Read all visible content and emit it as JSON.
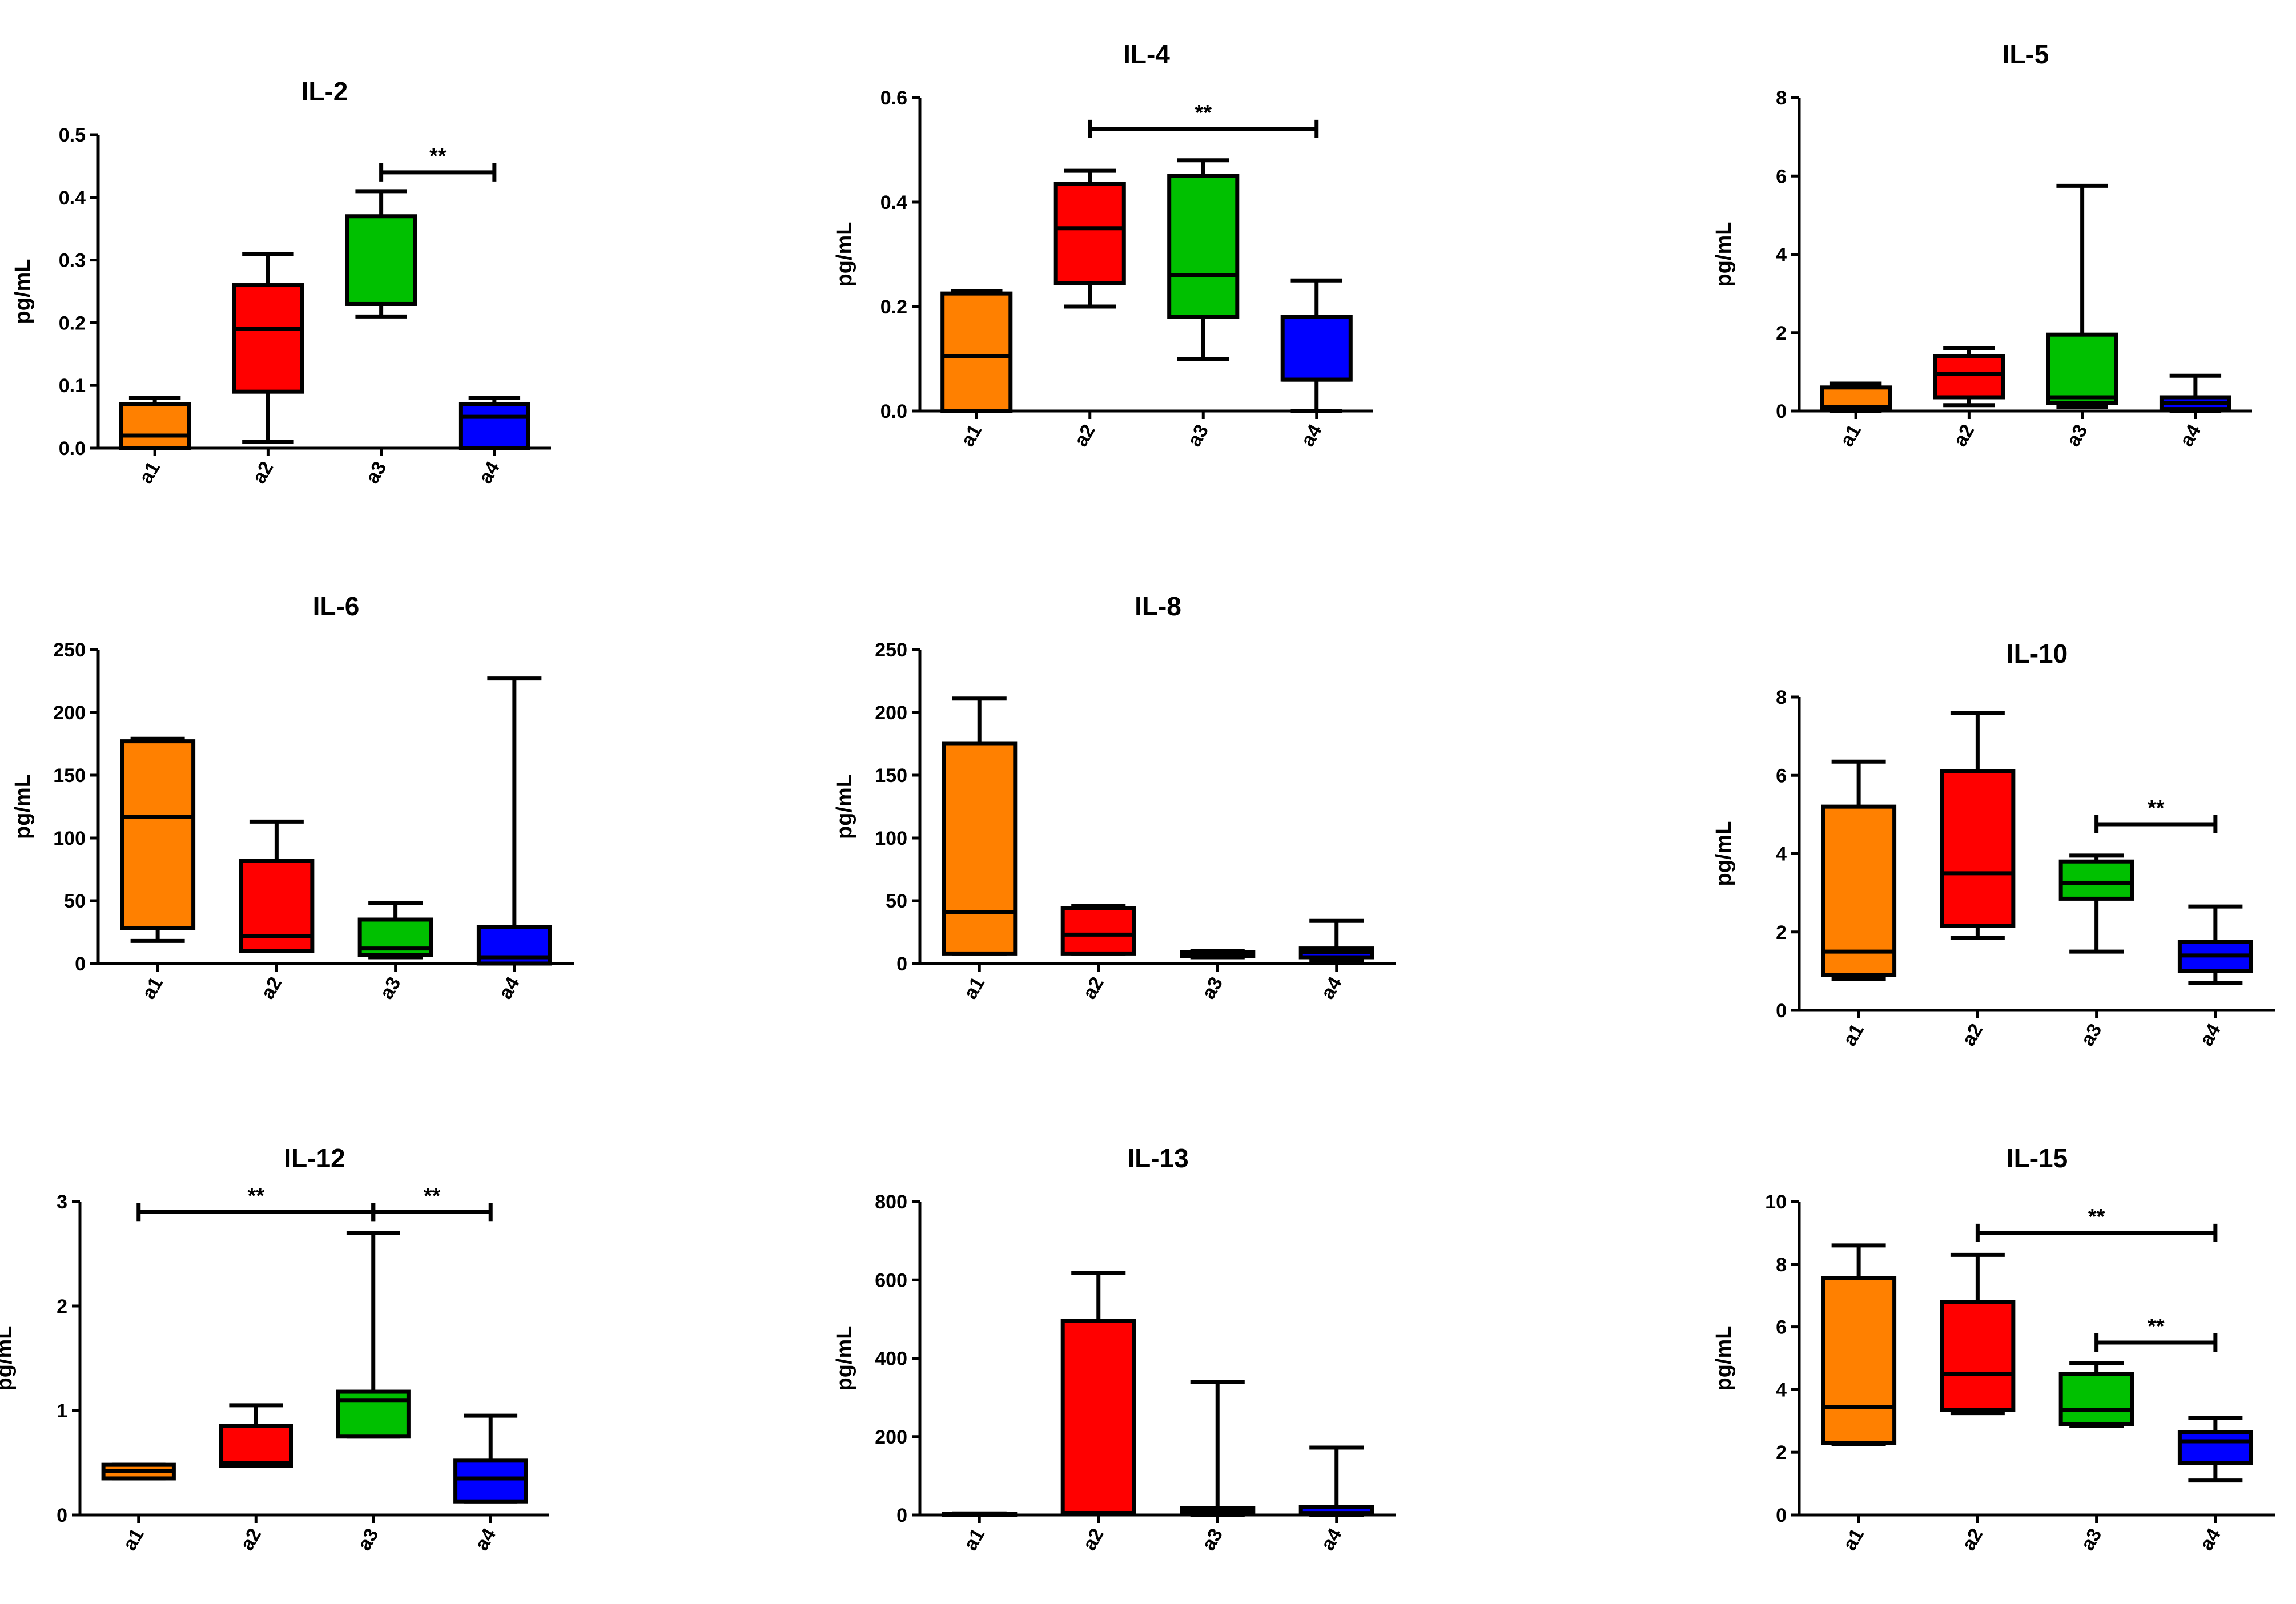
{
  "colors": {
    "a1": "#ff8000",
    "a2": "#ff0000",
    "a3": "#00c000",
    "a4": "#0000ff"
  },
  "chart_data": [
    {
      "type": "boxplot",
      "title": "IL-2",
      "ylabel": "pg/mL",
      "categories": [
        "a1",
        "a2",
        "a3",
        "a4"
      ],
      "ylim": [
        0,
        0.5
      ],
      "yticks": [
        0.0,
        0.1,
        0.2,
        0.3,
        0.4,
        0.5
      ],
      "ytick_labels": [
        "0.0",
        "0.1",
        "0.2",
        "0.3",
        "0.4",
        "0.5"
      ],
      "boxes": [
        {
          "min": 0.0,
          "q1": 0.0,
          "median": 0.02,
          "q3": 0.07,
          "max": 0.08
        },
        {
          "min": 0.01,
          "q1": 0.09,
          "median": 0.19,
          "q3": 0.26,
          "max": 0.31
        },
        {
          "min": 0.21,
          "q1": 0.23,
          "median": 0.23,
          "q3": 0.37,
          "max": 0.41
        },
        {
          "min": 0.0,
          "q1": 0.0,
          "median": 0.05,
          "q3": 0.07,
          "max": 0.08
        }
      ],
      "significance": [
        {
          "from": "a3",
          "to": "a4",
          "y": 0.44,
          "label": "**"
        }
      ]
    },
    {
      "type": "boxplot",
      "title": "IL-4",
      "ylabel": "pg/mL",
      "categories": [
        "a1",
        "a2",
        "a3",
        "a4"
      ],
      "ylim": [
        0,
        0.6
      ],
      "yticks": [
        0.0,
        0.2,
        0.4,
        0.6
      ],
      "ytick_labels": [
        "0.0",
        "0.2",
        "0.4",
        "0.6"
      ],
      "boxes": [
        {
          "min": 0.0,
          "q1": 0.0,
          "median": 0.105,
          "q3": 0.225,
          "max": 0.23
        },
        {
          "min": 0.2,
          "q1": 0.245,
          "median": 0.35,
          "q3": 0.435,
          "max": 0.46
        },
        {
          "min": 0.1,
          "q1": 0.18,
          "median": 0.26,
          "q3": 0.45,
          "max": 0.48
        },
        {
          "min": 0.0,
          "q1": 0.06,
          "median": 0.06,
          "q3": 0.18,
          "max": 0.25
        }
      ],
      "significance": [
        {
          "from": "a2",
          "to": "a4",
          "y": 0.54,
          "label": "**"
        }
      ]
    },
    {
      "type": "boxplot",
      "title": "IL-5",
      "ylabel": "pg/mL",
      "categories": [
        "a1",
        "a2",
        "a3",
        "a4"
      ],
      "ylim": [
        0,
        8
      ],
      "yticks": [
        0,
        2,
        4,
        6,
        8
      ],
      "ytick_labels": [
        "0",
        "2",
        "4",
        "6",
        "8"
      ],
      "boxes": [
        {
          "min": 0.0,
          "q1": 0.05,
          "median": 0.1,
          "q3": 0.6,
          "max": 0.7
        },
        {
          "min": 0.15,
          "q1": 0.35,
          "median": 0.95,
          "q3": 1.4,
          "max": 1.6
        },
        {
          "min": 0.1,
          "q1": 0.2,
          "median": 0.35,
          "q3": 1.95,
          "max": 5.75
        },
        {
          "min": 0.0,
          "q1": 0.05,
          "median": 0.2,
          "q3": 0.35,
          "max": 0.9
        }
      ],
      "significance": []
    },
    {
      "type": "boxplot",
      "title": "IL-6",
      "ylabel": "pg/mL",
      "categories": [
        "a1",
        "a2",
        "a3",
        "a4"
      ],
      "ylim": [
        0,
        250
      ],
      "yticks": [
        0,
        50,
        100,
        150,
        200,
        250
      ],
      "ytick_labels": [
        "0",
        "50",
        "100",
        "150",
        "200",
        "250"
      ],
      "boxes": [
        {
          "min": 18,
          "q1": 28,
          "median": 117,
          "q3": 177,
          "max": 179
        },
        {
          "min": 10,
          "q1": 10,
          "median": 22,
          "q3": 82,
          "max": 113
        },
        {
          "min": 5,
          "q1": 7,
          "median": 12,
          "q3": 35,
          "max": 48
        },
        {
          "min": 0,
          "q1": 0,
          "median": 5,
          "q3": 29,
          "max": 227
        }
      ],
      "significance": []
    },
    {
      "type": "boxplot",
      "title": "IL-8",
      "ylabel": "pg/mL",
      "categories": [
        "a1",
        "a2",
        "a3",
        "a4"
      ],
      "ylim": [
        0,
        250
      ],
      "yticks": [
        0,
        50,
        100,
        150,
        200,
        250
      ],
      "ytick_labels": [
        "0",
        "50",
        "100",
        "150",
        "200",
        "250"
      ],
      "boxes": [
        {
          "min": 8,
          "q1": 8,
          "median": 41,
          "q3": 175,
          "max": 211
        },
        {
          "min": 8,
          "q1": 8,
          "median": 23,
          "q3": 44,
          "max": 46
        },
        {
          "min": 5,
          "q1": 6,
          "median": 8,
          "q3": 9,
          "max": 10
        },
        {
          "min": 2,
          "q1": 5,
          "median": 9,
          "q3": 12,
          "max": 34
        }
      ],
      "significance": []
    },
    {
      "type": "boxplot",
      "title": "IL-10",
      "ylabel": "pg/mL",
      "categories": [
        "a1",
        "a2",
        "a3",
        "a4"
      ],
      "ylim": [
        0,
        8
      ],
      "yticks": [
        0,
        2,
        4,
        6,
        8
      ],
      "ytick_labels": [
        "0",
        "2",
        "4",
        "6",
        "8"
      ],
      "boxes": [
        {
          "min": 0.8,
          "q1": 0.9,
          "median": 1.5,
          "q3": 5.2,
          "max": 6.35
        },
        {
          "min": 1.85,
          "q1": 2.15,
          "median": 3.5,
          "q3": 6.1,
          "max": 7.6
        },
        {
          "min": 1.5,
          "q1": 2.85,
          "median": 3.25,
          "q3": 3.8,
          "max": 3.95
        },
        {
          "min": 0.7,
          "q1": 1.0,
          "median": 1.4,
          "q3": 1.75,
          "max": 2.65
        }
      ],
      "significance": [
        {
          "from": "a3",
          "to": "a4",
          "y": 4.75,
          "label": "**"
        }
      ]
    },
    {
      "type": "boxplot",
      "title": "IL-12",
      "ylabel": "pg/mL",
      "categories": [
        "a1",
        "a2",
        "a3",
        "a4"
      ],
      "ylim": [
        0,
        3
      ],
      "yticks": [
        0,
        1,
        2,
        3
      ],
      "ytick_labels": [
        "0",
        "1",
        "2",
        "3"
      ],
      "boxes": [
        {
          "min": 0.35,
          "q1": 0.35,
          "median": 0.42,
          "q3": 0.48,
          "max": 0.48
        },
        {
          "min": 0.47,
          "q1": 0.47,
          "median": 0.5,
          "q3": 0.85,
          "max": 1.05
        },
        {
          "min": 0.75,
          "q1": 0.75,
          "median": 1.1,
          "q3": 1.18,
          "max": 2.7
        },
        {
          "min": 0.13,
          "q1": 0.13,
          "median": 0.35,
          "q3": 0.52,
          "max": 0.95
        }
      ],
      "significance": [
        {
          "from": "a1",
          "to": "a3",
          "y": 2.9,
          "label": "**"
        },
        {
          "from": "a3",
          "to": "a4",
          "y": 2.9,
          "label": "**"
        }
      ]
    },
    {
      "type": "boxplot",
      "title": "IL-13",
      "ylabel": "pg/mL",
      "categories": [
        "a1",
        "a2",
        "a3",
        "a4"
      ],
      "ylim": [
        0,
        800
      ],
      "yticks": [
        0,
        200,
        400,
        600,
        800
      ],
      "ytick_labels": [
        "0",
        "200",
        "400",
        "600",
        "800"
      ],
      "boxes": [
        {
          "min": 0,
          "q1": 0,
          "median": 2,
          "q3": 3,
          "max": 4
        },
        {
          "min": 5,
          "q1": 5,
          "median": 5,
          "q3": 495,
          "max": 618
        },
        {
          "min": 0,
          "q1": 2,
          "median": 8,
          "q3": 18,
          "max": 340
        },
        {
          "min": 0,
          "q1": 2,
          "median": 5,
          "q3": 20,
          "max": 172
        }
      ],
      "significance": []
    },
    {
      "type": "boxplot",
      "title": "IL-15",
      "ylabel": "pg/mL",
      "categories": [
        "a1",
        "a2",
        "a3",
        "a4"
      ],
      "ylim": [
        0,
        10
      ],
      "yticks": [
        0,
        2,
        4,
        6,
        8,
        10
      ],
      "ytick_labels": [
        "0",
        "2",
        "4",
        "6",
        "8",
        "10"
      ],
      "boxes": [
        {
          "min": 2.25,
          "q1": 2.3,
          "median": 3.45,
          "q3": 7.55,
          "max": 8.6
        },
        {
          "min": 3.25,
          "q1": 3.35,
          "median": 4.5,
          "q3": 6.8,
          "max": 8.3
        },
        {
          "min": 2.85,
          "q1": 2.9,
          "median": 3.35,
          "q3": 4.5,
          "max": 4.85
        },
        {
          "min": 1.1,
          "q1": 1.65,
          "median": 2.35,
          "q3": 2.65,
          "max": 3.1
        }
      ],
      "significance": [
        {
          "from": "a2",
          "to": "a4",
          "y": 9.0,
          "label": "**"
        },
        {
          "from": "a3",
          "to": "a4",
          "y": 5.5,
          "label": "**"
        }
      ]
    }
  ]
}
